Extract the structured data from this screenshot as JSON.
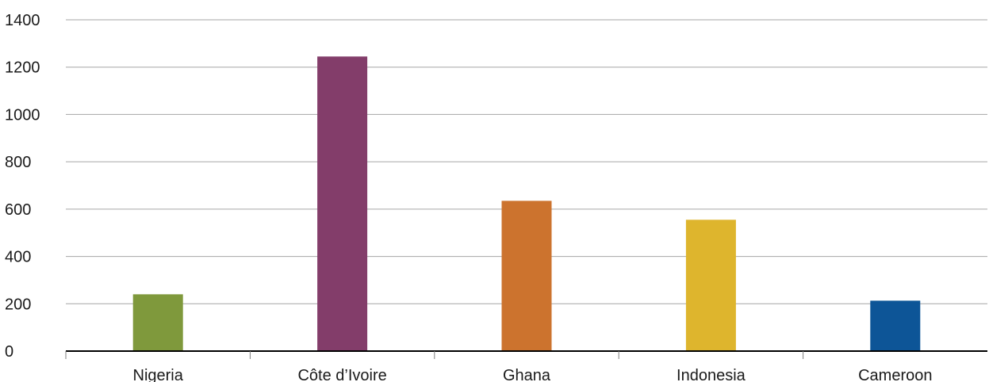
{
  "chart_data": {
    "type": "bar",
    "title": "",
    "xlabel": "",
    "ylabel": "",
    "categories": [
      "Nigeria",
      "Côte d’Ivoire",
      "Ghana",
      "Indonesia",
      "Cameroon"
    ],
    "values": [
      240,
      1245,
      635,
      555,
      213
    ],
    "colors": [
      "#7f993c",
      "#833d6a",
      "#cc732e",
      "#deb52d",
      "#0d5597"
    ],
    "ylim": [
      0,
      1400
    ],
    "yticks": [
      0,
      200,
      400,
      600,
      800,
      1000,
      1200,
      1400
    ],
    "grid": true,
    "legend": "none"
  }
}
